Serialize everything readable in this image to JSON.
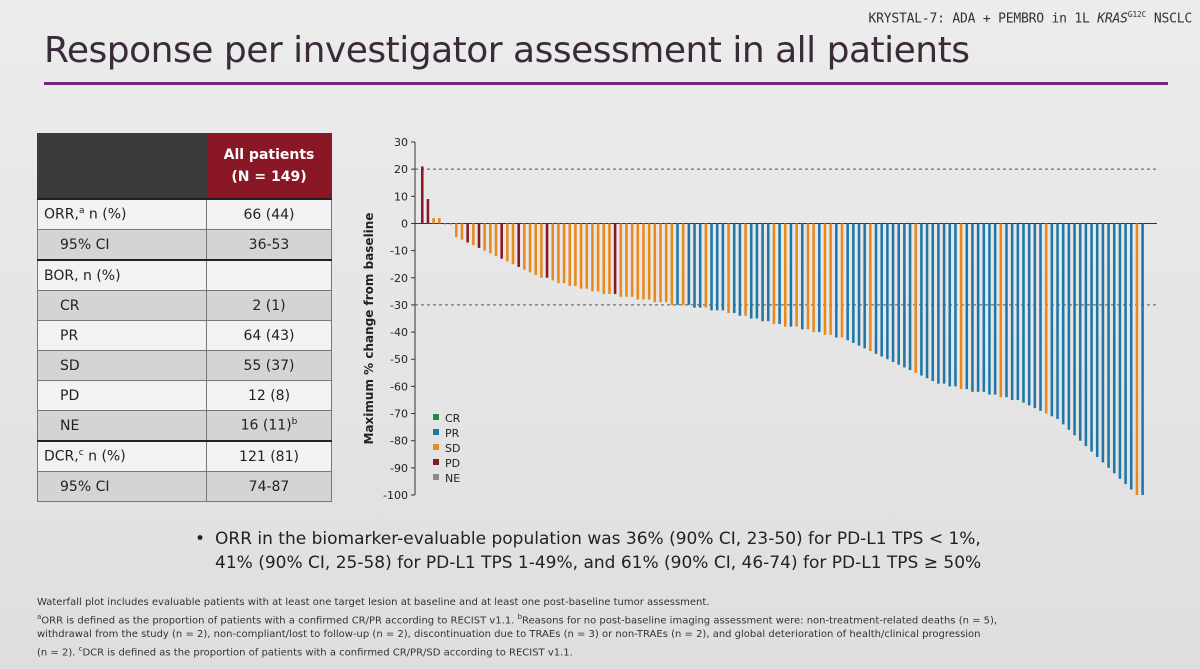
{
  "header": {
    "tag_prefix": "KRYSTAL-7: ADA + PEMBRO in 1L ",
    "tag_gene": "KRAS",
    "tag_sup": "G12C",
    "tag_suffix": " NSCLC"
  },
  "title": "Response per investigator assessment in all patients",
  "table": {
    "header_line1": "All patients",
    "header_line2": "(N = 149)",
    "rows": [
      {
        "label": "ORR,",
        "sup": "a",
        "label_rest": " n (%)",
        "value": "66 (44)",
        "indent": false,
        "shade": false,
        "group": true
      },
      {
        "label": "95% CI",
        "sup": "",
        "label_rest": "",
        "value": "36-53",
        "indent": true,
        "shade": true,
        "group": false
      },
      {
        "label": "BOR, n (%)",
        "sup": "",
        "label_rest": "",
        "value": "",
        "indent": false,
        "shade": false,
        "group": true
      },
      {
        "label": "CR",
        "sup": "",
        "label_rest": "",
        "value": "2 (1)",
        "indent": true,
        "shade": true,
        "group": false
      },
      {
        "label": "PR",
        "sup": "",
        "label_rest": "",
        "value": "64 (43)",
        "indent": true,
        "shade": false,
        "group": false
      },
      {
        "label": "SD",
        "sup": "",
        "label_rest": "",
        "value": "55 (37)",
        "indent": true,
        "shade": true,
        "group": false
      },
      {
        "label": "PD",
        "sup": "",
        "label_rest": "",
        "value": "12 (8)",
        "indent": true,
        "shade": false,
        "group": false
      },
      {
        "label": "NE",
        "sup": "",
        "label_rest": "",
        "value": "16 (11)",
        "value_sup": "b",
        "indent": true,
        "shade": true,
        "group": false
      },
      {
        "label": "DCR,",
        "sup": "c",
        "label_rest": " n (%)",
        "value": "121 (81)",
        "indent": false,
        "shade": false,
        "group": true
      },
      {
        "label": "95% CI",
        "sup": "",
        "label_rest": "",
        "value": "74-87",
        "indent": true,
        "shade": true,
        "group": false
      }
    ]
  },
  "chart_data": {
    "type": "bar",
    "subtype": "waterfall",
    "ylabel": "Maximum % change from baseline",
    "ylim": [
      -100,
      30
    ],
    "yticks": [
      30,
      20,
      10,
      0,
      -10,
      -20,
      -30,
      -40,
      -50,
      -60,
      -70,
      -80,
      -90,
      -100
    ],
    "reference_lines": [
      20,
      -30
    ],
    "legend": [
      {
        "name": "CR",
        "color": "#1f8a3c"
      },
      {
        "name": "PR",
        "color": "#1f77a8"
      },
      {
        "name": "SD",
        "color": "#e8891e"
      },
      {
        "name": "PD",
        "color": "#8a1726"
      },
      {
        "name": "NE",
        "color": "#8a8a8a"
      }
    ],
    "legend_placement": "bottom-left",
    "categories_note": "one bar per evaluable patient, sorted descending",
    "values": [
      21,
      9,
      2,
      2,
      0,
      0,
      -5,
      -6,
      -7,
      -8,
      -9,
      -10,
      -11,
      -12,
      -13,
      -14,
      -15,
      -16,
      -17,
      -18,
      -19,
      -20,
      -20,
      -21,
      -22,
      -22,
      -23,
      -23,
      -24,
      -24,
      -25,
      -25,
      -26,
      -26,
      -26,
      -27,
      -27,
      -27,
      -28,
      -28,
      -28,
      -29,
      -29,
      -29,
      -30,
      -30,
      -30,
      -30,
      -31,
      -31,
      -31,
      -32,
      -32,
      -32,
      -33,
      -33,
      -34,
      -34,
      -35,
      -35,
      -36,
      -36,
      -37,
      -37,
      -38,
      -38,
      -38,
      -39,
      -39,
      -40,
      -40,
      -41,
      -41,
      -42,
      -42,
      -43,
      -44,
      -45,
      -46,
      -47,
      -48,
      -49,
      -50,
      -51,
      -52,
      -53,
      -54,
      -55,
      -56,
      -57,
      -58,
      -59,
      -59,
      -60,
      -60,
      -61,
      -61,
      -62,
      -62,
      -62,
      -63,
      -63,
      -64,
      -64,
      -65,
      -65,
      -66,
      -67,
      -68,
      -69,
      -70,
      -71,
      -72,
      -74,
      -76,
      -78,
      -80,
      -82,
      -84,
      -86,
      -88,
      -90,
      -92,
      -94,
      -96,
      -98,
      -100,
      -100
    ],
    "responses": [
      "PD",
      "PD",
      "SD",
      "SD",
      "SD",
      "SD",
      "SD",
      "SD",
      "PD",
      "SD",
      "PD",
      "SD",
      "SD",
      "SD",
      "PD",
      "SD",
      "SD",
      "PD",
      "SD",
      "SD",
      "SD",
      "SD",
      "PD",
      "SD",
      "SD",
      "SD",
      "SD",
      "SD",
      "SD",
      "SD",
      "SD",
      "SD",
      "SD",
      "SD",
      "PD",
      "SD",
      "SD",
      "SD",
      "SD",
      "SD",
      "SD",
      "SD",
      "SD",
      "SD",
      "SD",
      "PR",
      "SD",
      "PR",
      "PR",
      "PR",
      "SD",
      "PR",
      "PR",
      "PR",
      "SD",
      "PR",
      "PR",
      "SD",
      "PR",
      "PR",
      "PR",
      "PR",
      "SD",
      "PR",
      "SD",
      "PR",
      "SD",
      "PR",
      "SD",
      "SD",
      "PR",
      "SD",
      "SD",
      "PR",
      "SD",
      "PR",
      "PR",
      "PR",
      "PR",
      "SD",
      "PR",
      "PR",
      "PR",
      "PR",
      "PR",
      "PR",
      "PR",
      "SD",
      "PR",
      "PR",
      "PR",
      "PR",
      "PR",
      "PR",
      "PR",
      "SD",
      "PR",
      "PR",
      "PR",
      "PR",
      "PR",
      "PR",
      "SD",
      "PR",
      "PR",
      "PR",
      "PR",
      "PR",
      "PR",
      "PR",
      "SD",
      "PR",
      "PR",
      "PR",
      "PR",
      "PR",
      "PR",
      "PR",
      "PR",
      "PR",
      "PR",
      "PR",
      "PR",
      "PR",
      "PR",
      "PR",
      "SD",
      "PR"
    ]
  },
  "bullet": {
    "line1": "ORR in the biomarker-evaluable population was 36% (90% CI, 23-50) for PD-L1 TPS < 1%,",
    "line2": "41% (90% CI, 25-58) for PD-L1 TPS 1-49%, and 61% (90% CI, 46-74) for PD-L1 TPS ≥ 50%"
  },
  "footnotes": {
    "line1": "Waterfall plot includes evaluable patients with at least one target lesion at baseline and at least one post-baseline tumor assessment.",
    "line2": "ORR is defined as the proportion of patients with a confirmed CR/PR according to RECIST v1.1. ",
    "line2b": "Reasons for no post-baseline imaging assessment were: non-treatment-related deaths (n = 5),",
    "line3": "withdrawal from the study (n = 2), non-compliant/lost to follow-up (n = 2), discontinuation due to TRAEs (n = 3) or non-TRAEs (n = 2), and global deterioration of health/clinical progression",
    "line4": "(n = 2). ",
    "line4b": "DCR is defined as the proportion of patients with a confirmed CR/PR/SD according to RECIST v1.1.",
    "sup_a": "a",
    "sup_b": "b",
    "sup_c": "c"
  }
}
